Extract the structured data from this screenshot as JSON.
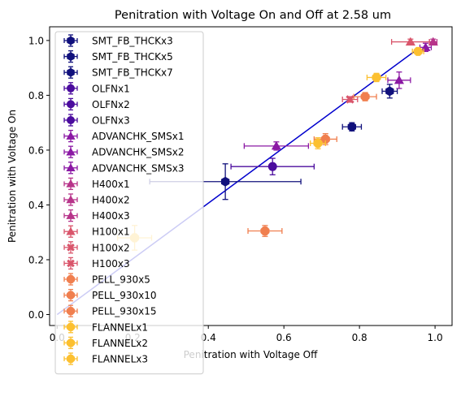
{
  "chart_data": {
    "type": "scatter",
    "title": "Penitration with Voltage On and Off at 2.58 um",
    "xlabel": "Penitration with Voltage Off",
    "ylabel": "Penitration with Voltage On",
    "xlim": [
      -0.02,
      1.045
    ],
    "ylim": [
      -0.04,
      1.05
    ],
    "xticks": [
      0.0,
      0.2,
      0.4,
      0.6,
      0.8,
      1.0
    ],
    "yticks": [
      0.0,
      0.2,
      0.4,
      0.6,
      0.8,
      1.0
    ],
    "grid": false,
    "legend_position": "upper-left",
    "fit_line": {
      "x": [
        0.0,
        0.945
      ],
      "y": [
        0.0,
        0.96
      ],
      "color": "#0000cd"
    },
    "series": [
      {
        "name": "SMT_FB_THCKx3",
        "marker": "hexagon",
        "color": "#10107c",
        "points": [
          {
            "x": 0.88,
            "y": 0.815,
            "xerr": 0.02,
            "yerr": 0.025
          }
        ]
      },
      {
        "name": "SMT_FB_THCKx5",
        "marker": "hexagon",
        "color": "#10107c",
        "points": [
          {
            "x": 0.78,
            "y": 0.685,
            "xerr": 0.025,
            "yerr": 0.015
          }
        ]
      },
      {
        "name": "SMT_FB_THCKx7",
        "marker": "hexagon",
        "color": "#10107c",
        "points": [
          {
            "x": 0.445,
            "y": 0.485,
            "xerr": 0.2,
            "yerr": 0.065
          }
        ]
      },
      {
        "name": "OLFNx1",
        "marker": "circle",
        "color": "#4b0c9e",
        "points": [
          {
            "x": 0.57,
            "y": 0.54,
            "xerr": 0.11,
            "yerr": 0.03
          }
        ]
      },
      {
        "name": "OLFNx2",
        "marker": "circle",
        "color": "#4b0c9e",
        "points": []
      },
      {
        "name": "OLFNx3",
        "marker": "circle",
        "color": "#4b0c9e",
        "points": []
      },
      {
        "name": "ADVANCHK_SMSx1",
        "marker": "triangle",
        "color": "#8b19a4",
        "points": [
          {
            "x": 0.58,
            "y": 0.615,
            "xerr": 0.085,
            "yerr": 0.015
          }
        ]
      },
      {
        "name": "ADVANCHK_SMSx2",
        "marker": "triangle",
        "color": "#8b19a4",
        "points": [
          {
            "x": 0.905,
            "y": 0.855,
            "xerr": 0.03,
            "yerr": 0.03
          }
        ]
      },
      {
        "name": "ADVANCHK_SMSx3",
        "marker": "triangle",
        "color": "#8b19a4",
        "points": [
          {
            "x": 0.975,
            "y": 0.975,
            "xerr": 0.015,
            "yerr": 0.015
          }
        ]
      },
      {
        "name": "H400x1",
        "marker": "triangle",
        "color": "#b7348a",
        "points": [
          {
            "x": 0.995,
            "y": 0.995,
            "xerr": 0.01,
            "yerr": 0.01
          }
        ]
      },
      {
        "name": "H400x2",
        "marker": "triangle",
        "color": "#b7348a",
        "points": []
      },
      {
        "name": "H400x3",
        "marker": "triangle",
        "color": "#b7348a",
        "points": []
      },
      {
        "name": "H100x1",
        "marker": "triangle",
        "color": "#d9556b",
        "points": [
          {
            "x": 0.935,
            "y": 0.995,
            "xerr": 0.05,
            "yerr": 0.01
          }
        ]
      },
      {
        "name": "H100x2",
        "marker": "x",
        "color": "#d9556b",
        "points": [
          {
            "x": 0.775,
            "y": 0.785,
            "xerr": 0.02,
            "yerr": 0.01
          }
        ]
      },
      {
        "name": "H100x3",
        "marker": "x",
        "color": "#d9556b",
        "points": []
      },
      {
        "name": "PELL_930x5",
        "marker": "octagon",
        "color": "#f07f4f",
        "points": [
          {
            "x": 0.815,
            "y": 0.795,
            "xerr": 0.03,
            "yerr": 0.015
          }
        ]
      },
      {
        "name": "PELL_930x10",
        "marker": "octagon",
        "color": "#f07f4f",
        "points": [
          {
            "x": 0.71,
            "y": 0.64,
            "xerr": 0.03,
            "yerr": 0.02
          }
        ]
      },
      {
        "name": "PELL_930x15",
        "marker": "octagon",
        "color": "#f07f4f",
        "points": [
          {
            "x": 0.55,
            "y": 0.305,
            "xerr": 0.045,
            "yerr": 0.02
          }
        ]
      },
      {
        "name": "FLANNELx1",
        "marker": "octagon",
        "color": "#fcc030",
        "points": [
          {
            "x": 0.845,
            "y": 0.865,
            "xerr": 0.025,
            "yerr": 0.015
          }
        ]
      },
      {
        "name": "FLANNELx2",
        "marker": "octagon",
        "color": "#fcc030",
        "points": [
          {
            "x": 0.69,
            "y": 0.625,
            "xerr": 0.02,
            "yerr": 0.02
          }
        ]
      },
      {
        "name": "FLANNELx3",
        "marker": "octagon",
        "color": "#fcc030",
        "points": [
          {
            "x": 0.955,
            "y": 0.96,
            "xerr": 0.015,
            "yerr": 0.01
          },
          {
            "x": 0.205,
            "y": 0.28,
            "xerr": 0.045,
            "yerr": 0.045
          }
        ]
      }
    ]
  }
}
